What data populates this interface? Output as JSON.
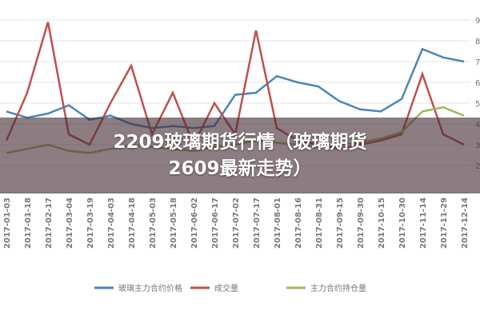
{
  "chart_data": {
    "type": "line",
    "title": "2209玻璃期货行情（玻璃期货2609最新走势）",
    "categories": [
      "2017-01-03",
      "2017-01-18",
      "2017-02-17",
      "2017-03-04",
      "2017-03-19",
      "2017-04-03",
      "2017-04-18",
      "2017-05-03",
      "2017-05-18",
      "2017-06-02",
      "2017-06-17",
      "2017-07-02",
      "2017-07-17",
      "2017-08-01",
      "2017-08-16",
      "2017-08-31",
      "2017-09-15",
      "2017-09-30",
      "2017-10-15",
      "2017-10-30",
      "2017-11-14",
      "2017-11-29",
      "2017-12-14"
    ],
    "series": [
      {
        "name": "玻璃主力合约价格",
        "color": "#4a86b8",
        "values": [
          4.6,
          4.3,
          4.5,
          4.9,
          4.2,
          4.4,
          4.0,
          3.8,
          3.9,
          3.8,
          3.9,
          5.4,
          5.5,
          6.3,
          6.0,
          5.8,
          5.1,
          4.7,
          4.6,
          5.2,
          7.6,
          7.2,
          7.0
        ]
      },
      {
        "name": "成交量",
        "color": "#c0504d",
        "values": [
          3.2,
          5.5,
          8.9,
          3.5,
          3.0,
          5.0,
          6.8,
          3.5,
          5.5,
          3.0,
          5.0,
          3.5,
          8.5,
          3.8,
          3.2,
          3.0,
          2.8,
          3.0,
          3.2,
          3.5,
          6.4,
          3.5,
          3.0
        ]
      },
      {
        "name": "主力合约持仓量",
        "color": "#9bbb59",
        "values": [
          2.6,
          2.8,
          3.0,
          2.7,
          2.6,
          2.8,
          3.0,
          2.9,
          2.8,
          2.7,
          2.9,
          3.0,
          3.2,
          3.1,
          3.0,
          2.9,
          3.0,
          3.1,
          3.3,
          3.6,
          4.6,
          4.8,
          4.4
        ]
      }
    ],
    "ylim": [
      1,
      9
    ],
    "yticks": [
      2,
      3,
      4,
      5,
      6,
      7,
      8,
      9
    ],
    "grid": true
  }
}
